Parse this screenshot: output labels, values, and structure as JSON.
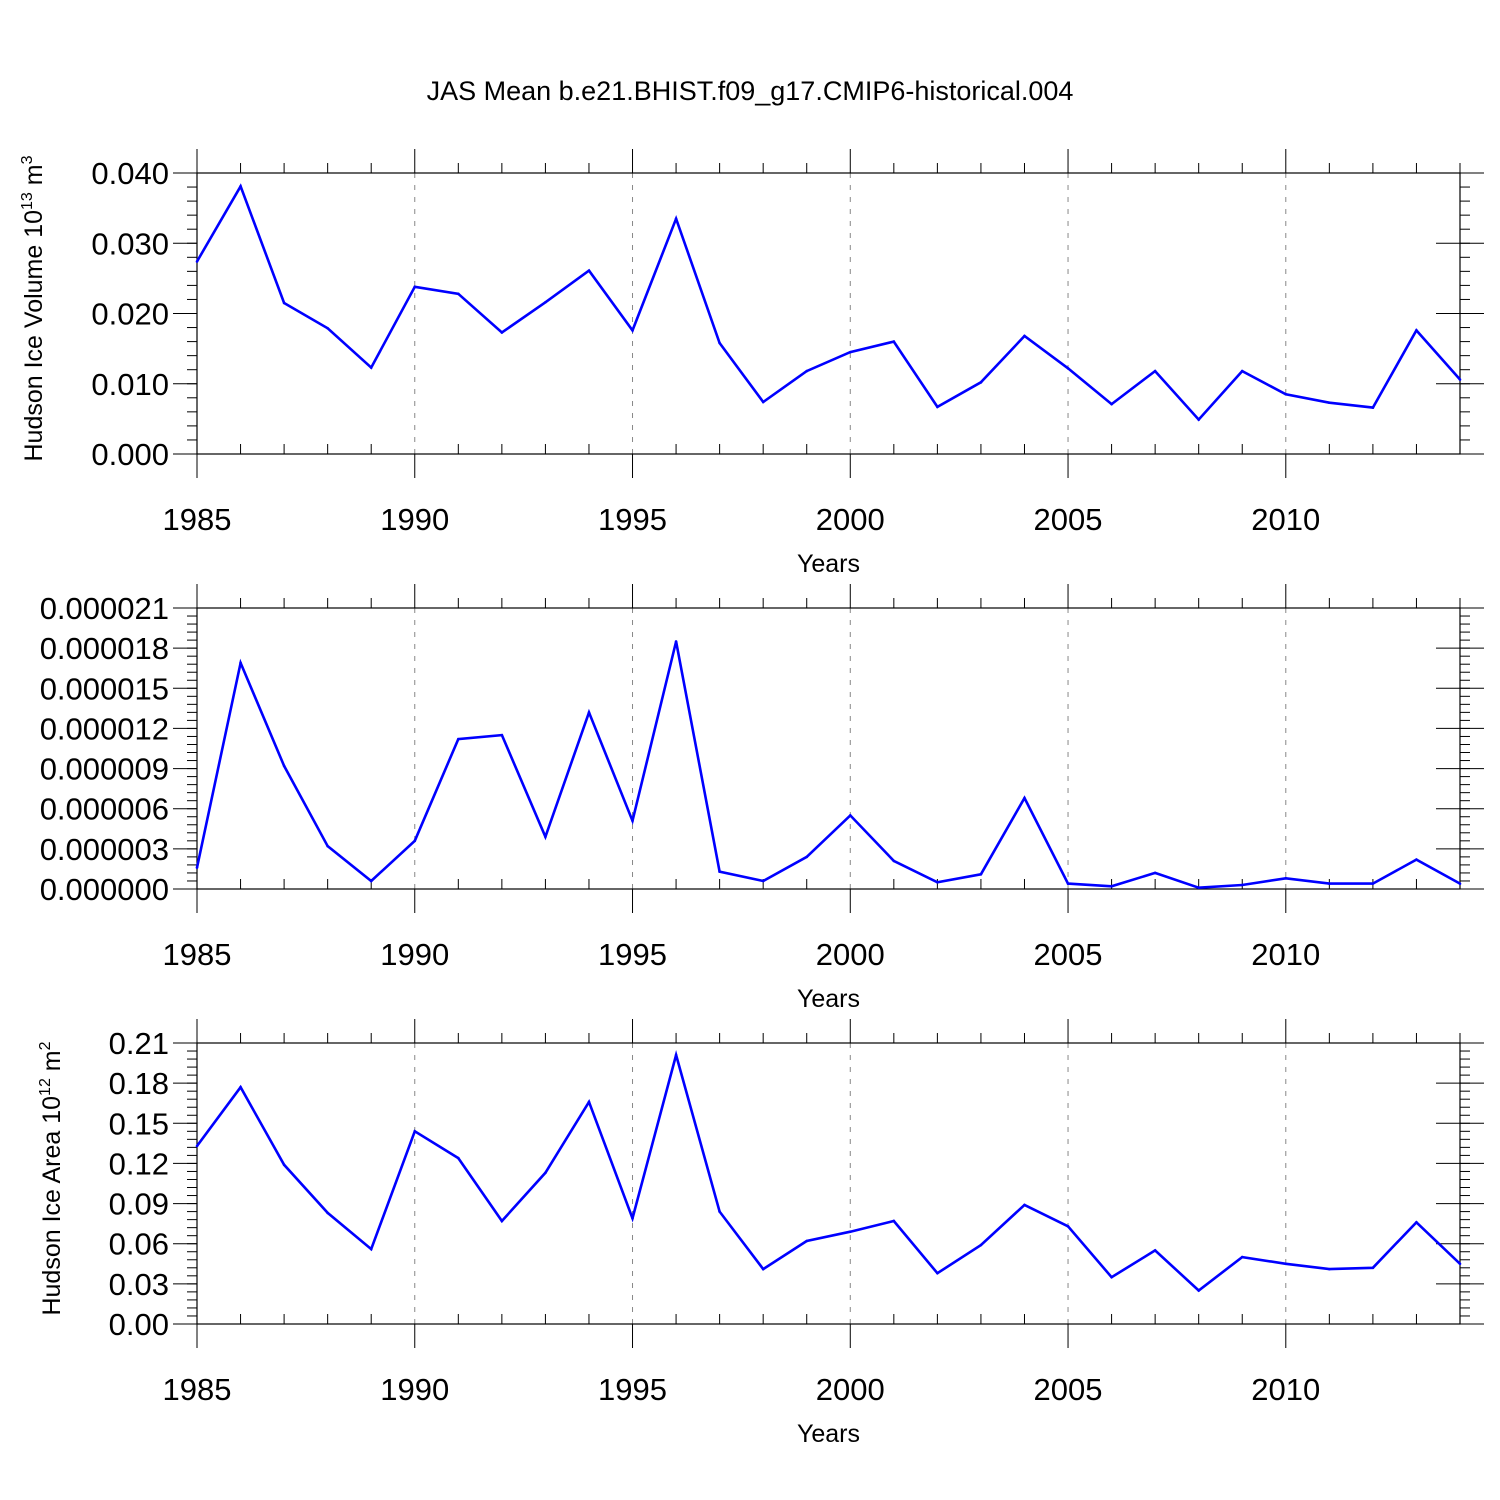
{
  "page_title": "JAS Mean b.e21.BHIST.f09_g17.CMIP6-historical.004",
  "colors": {
    "line": "#0000ff",
    "axes": "#000000",
    "grid": "#888888"
  },
  "chart_data": [
    {
      "type": "line",
      "title": "JAS Mean b.e21.BHIST.f09_g17.CMIP6-historical.004",
      "xlabel": "Years",
      "ylabel": "Hudson Ice Volume 10",
      "ylabel_exp": "13",
      "ylabel_unit": " m",
      "ylabel_unit_exp": "3",
      "xlim": [
        1985,
        2014
      ],
      "ylim": [
        0,
        0.04
      ],
      "x_ticks": [
        1985,
        1990,
        1995,
        2000,
        2005,
        2010
      ],
      "x_tick_labels": [
        "1985",
        "1990",
        "1995",
        "2000",
        "2005",
        "2010"
      ],
      "y_ticks": [
        0,
        0.01,
        0.02,
        0.03,
        0.04
      ],
      "y_tick_labels": [
        "0.000",
        "0.010",
        "0.020",
        "0.030",
        "0.040"
      ],
      "y_minor_step": 0.002,
      "grid": "vertical dashed at major x ticks",
      "x": [
        1985,
        1986,
        1987,
        1988,
        1989,
        1990,
        1991,
        1992,
        1993,
        1994,
        1995,
        1996,
        1997,
        1998,
        1999,
        2000,
        2001,
        2002,
        2003,
        2004,
        2005,
        2006,
        2007,
        2008,
        2009,
        2010,
        2011,
        2012,
        2013,
        2014
      ],
      "values": [
        0.0274,
        0.0381,
        0.0215,
        0.0179,
        0.0123,
        0.0238,
        0.0228,
        0.0173,
        0.0216,
        0.0261,
        0.0176,
        0.0335,
        0.0158,
        0.0074,
        0.0118,
        0.0145,
        0.016,
        0.0067,
        0.0102,
        0.0168,
        0.0122,
        0.0071,
        0.0118,
        0.0049,
        0.0118,
        0.0085,
        0.0073,
        0.0066,
        0.0176,
        0.0106
      ]
    },
    {
      "type": "line",
      "xlabel": "Years",
      "ylabel": "",
      "xlim": [
        1985,
        2014
      ],
      "ylim": [
        0,
        2.1e-05
      ],
      "x_ticks": [
        1985,
        1990,
        1995,
        2000,
        2005,
        2010
      ],
      "x_tick_labels": [
        "1985",
        "1990",
        "1995",
        "2000",
        "2005",
        "2010"
      ],
      "y_ticks": [
        0,
        3e-06,
        6e-06,
        9e-06,
        1.2e-05,
        1.5e-05,
        1.8e-05,
        2.1e-05
      ],
      "y_tick_labels": [
        "0.000000",
        "0.000003",
        "0.000006",
        "0.000009",
        "0.000012",
        "0.000015",
        "0.000018",
        "0.000021"
      ],
      "y_minor_step": 6e-07,
      "grid": "vertical dashed at major x ticks",
      "x": [
        1985,
        1986,
        1987,
        1988,
        1989,
        1990,
        1991,
        1992,
        1993,
        1994,
        1995,
        1996,
        1997,
        1998,
        1999,
        2000,
        2001,
        2002,
        2003,
        2004,
        2005,
        2006,
        2007,
        2008,
        2009,
        2010,
        2011,
        2012,
        2013,
        2014
      ],
      "values": [
        1.6e-06,
        1.69e-05,
        9.2e-06,
        3.2e-06,
        6e-07,
        3.6e-06,
        1.12e-05,
        1.15e-05,
        3.9e-06,
        1.32e-05,
        5.1e-06,
        1.85e-05,
        1.3e-06,
        6e-07,
        2.4e-06,
        5.5e-06,
        2.1e-06,
        5e-07,
        1.1e-06,
        6.8e-06,
        4e-07,
        2e-07,
        1.2e-06,
        1e-07,
        3e-07,
        8e-07,
        4e-07,
        4e-07,
        2.2e-06,
        4e-07
      ]
    },
    {
      "type": "line",
      "xlabel": "Years",
      "ylabel": "Hudson Ice Area 10",
      "ylabel_exp": "12",
      "ylabel_unit": " m",
      "ylabel_unit_exp": "2",
      "xlim": [
        1985,
        2014
      ],
      "ylim": [
        0,
        0.21
      ],
      "x_ticks": [
        1985,
        1990,
        1995,
        2000,
        2005,
        2010
      ],
      "x_tick_labels": [
        "1985",
        "1990",
        "1995",
        "2000",
        "2005",
        "2010"
      ],
      "y_ticks": [
        0,
        0.03,
        0.06,
        0.09,
        0.12,
        0.15,
        0.18,
        0.21
      ],
      "y_tick_labels": [
        "0.00",
        "0.03",
        "0.06",
        "0.09",
        "0.12",
        "0.15",
        "0.18",
        "0.21"
      ],
      "y_minor_step": 0.006,
      "grid": "vertical dashed at major x ticks",
      "x": [
        1985,
        1986,
        1987,
        1988,
        1989,
        1990,
        1991,
        1992,
        1993,
        1994,
        1995,
        1996,
        1997,
        1998,
        1999,
        2000,
        2001,
        2002,
        2003,
        2004,
        2005,
        2006,
        2007,
        2008,
        2009,
        2010,
        2011,
        2012,
        2013,
        2014
      ],
      "values": [
        0.133,
        0.177,
        0.119,
        0.083,
        0.056,
        0.144,
        0.124,
        0.077,
        0.113,
        0.166,
        0.079,
        0.201,
        0.084,
        0.041,
        0.062,
        0.069,
        0.077,
        0.038,
        0.059,
        0.089,
        0.073,
        0.035,
        0.055,
        0.025,
        0.05,
        0.045,
        0.041,
        0.042,
        0.076,
        0.045
      ]
    }
  ]
}
